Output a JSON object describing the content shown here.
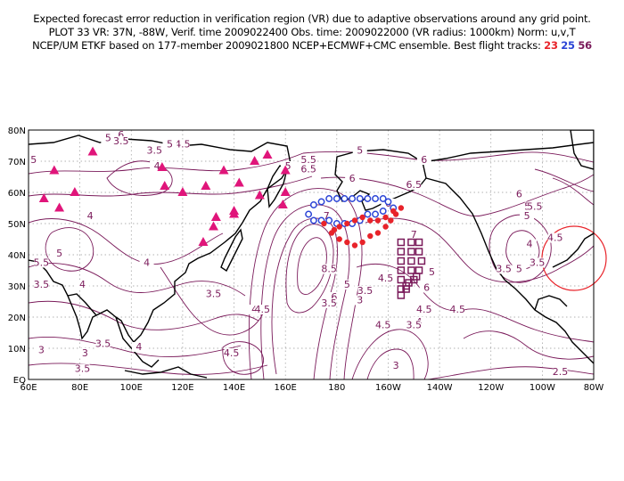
{
  "header": {
    "line1": "Expected forecast error reduction in verification region (VR) due to adaptive observations around any grid point.",
    "line2": "PLOT 33 VR: 37N, -88W, Verif. time 2009022400 Obs. time: 2009022000 (VR radius: 1000km) Norm: u,v,T",
    "line3_prefix": "NCEP/UM ETKF based on 177-member 2009021800 NCEP+ECMWF+CMC ensemble. Best flight tracks:",
    "track_ids": [
      "23",
      "25",
      "56"
    ]
  },
  "colors": {
    "contour": "#7a1a5a",
    "track_23": "#e8232a",
    "track_25": "#2b44d6",
    "track_56": "#7a1a5a",
    "stations": "#e0157a",
    "verification_circle": "#e8232a"
  },
  "map": {
    "lon_ticks": [
      "60E",
      "80E",
      "100E",
      "120E",
      "140E",
      "160E",
      "180",
      "160W",
      "140W",
      "120W",
      "100W",
      "80W"
    ],
    "lat_ticks": [
      "EQ",
      "10N",
      "20N",
      "30N",
      "40N",
      "50N",
      "60N",
      "70N",
      "80N"
    ],
    "lon_range": [
      60,
      280
    ],
    "lat_range": [
      0,
      80
    ],
    "verification_region": {
      "lat": 37,
      "lon": -88
    },
    "contour_labels": [
      {
        "v": "5.5",
        "lon": 169,
        "lat": 70
      },
      {
        "v": "6.5",
        "lon": 169,
        "lat": 67
      },
      {
        "v": "6",
        "lon": 186,
        "lat": 64
      },
      {
        "v": "5",
        "lon": 189,
        "lat": 73
      },
      {
        "v": "6",
        "lon": 214,
        "lat": 70
      },
      {
        "v": "6.5",
        "lon": 210,
        "lat": 62
      },
      {
        "v": "6",
        "lon": 200,
        "lat": 56
      },
      {
        "v": "7",
        "lon": 210,
        "lat": 46
      },
      {
        "v": "5",
        "lon": 217,
        "lat": 34
      },
      {
        "v": "6",
        "lon": 215,
        "lat": 29
      },
      {
        "v": "4.5",
        "lon": 199,
        "lat": 32
      },
      {
        "v": "3.5",
        "lon": 191,
        "lat": 28
      },
      {
        "v": "5",
        "lon": 184,
        "lat": 30
      },
      {
        "v": "8.5",
        "lon": 177,
        "lat": 35
      },
      {
        "v": "7",
        "lon": 176,
        "lat": 52
      },
      {
        "v": "6",
        "lon": 179,
        "lat": 26
      },
      {
        "v": "3",
        "lon": 189,
        "lat": 25
      },
      {
        "v": "3.5",
        "lon": 177,
        "lat": 24
      },
      {
        "v": "4.5",
        "lon": 198,
        "lat": 17
      },
      {
        "v": "4",
        "lon": 212,
        "lat": 18
      },
      {
        "v": "4.5",
        "lon": 214,
        "lat": 22
      },
      {
        "v": "3.5",
        "lon": 210,
        "lat": 17
      },
      {
        "v": "3",
        "lon": 203,
        "lat": 4
      },
      {
        "v": "2.5",
        "lon": 267,
        "lat": 2
      },
      {
        "v": "6",
        "lon": 251,
        "lat": 59
      },
      {
        "v": "5.5",
        "lon": 256,
        "lat": 55
      },
      {
        "v": "5",
        "lon": 254,
        "lat": 52
      },
      {
        "v": "4.5",
        "lon": 265,
        "lat": 45
      },
      {
        "v": "4",
        "lon": 255,
        "lat": 43
      },
      {
        "v": "3.5",
        "lon": 258,
        "lat": 37
      },
      {
        "v": "3.5",
        "lon": 245,
        "lat": 35
      },
      {
        "v": "5",
        "lon": 251,
        "lat": 35
      },
      {
        "v": "4.5",
        "lon": 227,
        "lat": 22
      },
      {
        "v": "5.5",
        "lon": 257,
        "lat": 55
      },
      {
        "v": "5",
        "lon": 91,
        "lat": 77
      },
      {
        "v": "6",
        "lon": 96,
        "lat": 78
      },
      {
        "v": "3.5",
        "lon": 96,
        "lat": 76
      },
      {
        "v": "4.5",
        "lon": 120,
        "lat": 75
      },
      {
        "v": "5",
        "lon": 115,
        "lat": 75
      },
      {
        "v": "4",
        "lon": 110,
        "lat": 68
      },
      {
        "v": "5",
        "lon": 62,
        "lat": 70
      },
      {
        "v": "4",
        "lon": 84,
        "lat": 52
      },
      {
        "v": "5",
        "lon": 72,
        "lat": 40
      },
      {
        "v": "5.5",
        "lon": 65,
        "lat": 37
      },
      {
        "v": "4",
        "lon": 106,
        "lat": 37
      },
      {
        "v": "4",
        "lon": 148,
        "lat": 22
      },
      {
        "v": "3.5",
        "lon": 132,
        "lat": 27
      },
      {
        "v": "4.5",
        "lon": 151,
        "lat": 22
      },
      {
        "v": "4.5",
        "lon": 139,
        "lat": 8
      },
      {
        "v": "3.5",
        "lon": 89,
        "lat": 11
      },
      {
        "v": "3",
        "lon": 65,
        "lat": 9
      },
      {
        "v": "4",
        "lon": 81,
        "lat": 30
      },
      {
        "v": "3",
        "lon": 82,
        "lat": 8
      },
      {
        "v": "3.5",
        "lon": 81,
        "lat": 3
      },
      {
        "v": "4",
        "lon": 103,
        "lat": 10
      },
      {
        "v": "3.5",
        "lon": 65,
        "lat": 30
      },
      {
        "v": "5",
        "lon": 161,
        "lat": 68
      },
      {
        "v": "3.5",
        "lon": 109,
        "lat": 73
      }
    ],
    "stations": [
      {
        "lon": 85,
        "lat": 73
      },
      {
        "lon": 70,
        "lat": 67
      },
      {
        "lon": 66,
        "lat": 58
      },
      {
        "lon": 78,
        "lat": 60
      },
      {
        "lon": 72,
        "lat": 55
      },
      {
        "lon": 112,
        "lat": 68
      },
      {
        "lon": 113,
        "lat": 62
      },
      {
        "lon": 120,
        "lat": 60
      },
      {
        "lon": 129,
        "lat": 62
      },
      {
        "lon": 136,
        "lat": 67
      },
      {
        "lon": 142,
        "lat": 63
      },
      {
        "lon": 148,
        "lat": 70
      },
      {
        "lon": 150,
        "lat": 59
      },
      {
        "lon": 160,
        "lat": 67
      },
      {
        "lon": 160,
        "lat": 60
      },
      {
        "lon": 159,
        "lat": 56
      },
      {
        "lon": 133,
        "lat": 52
      },
      {
        "lon": 132,
        "lat": 49
      },
      {
        "lon": 128,
        "lat": 44
      },
      {
        "lon": 140,
        "lat": 53
      },
      {
        "lon": 140,
        "lat": 54
      },
      {
        "lon": 153,
        "lat": 72
      }
    ],
    "track_23": [
      {
        "lon": 175,
        "lat": 50
      },
      {
        "lon": 178,
        "lat": 47
      },
      {
        "lon": 181,
        "lat": 45
      },
      {
        "lon": 184,
        "lat": 44
      },
      {
        "lon": 187,
        "lat": 43
      },
      {
        "lon": 190,
        "lat": 44
      },
      {
        "lon": 193,
        "lat": 46
      },
      {
        "lon": 196,
        "lat": 47
      },
      {
        "lon": 199,
        "lat": 49
      },
      {
        "lon": 201,
        "lat": 51
      },
      {
        "lon": 203,
        "lat": 53
      },
      {
        "lon": 205,
        "lat": 55
      },
      {
        "lon": 202,
        "lat": 54
      },
      {
        "lon": 199,
        "lat": 52
      },
      {
        "lon": 196,
        "lat": 51
      },
      {
        "lon": 193,
        "lat": 51
      },
      {
        "lon": 190,
        "lat": 52
      },
      {
        "lon": 187,
        "lat": 51
      },
      {
        "lon": 184,
        "lat": 50
      },
      {
        "lon": 181,
        "lat": 49
      },
      {
        "lon": 179,
        "lat": 48
      }
    ],
    "track_25": [
      {
        "lon": 169,
        "lat": 53
      },
      {
        "lon": 171,
        "lat": 56
      },
      {
        "lon": 174,
        "lat": 57
      },
      {
        "lon": 177,
        "lat": 58
      },
      {
        "lon": 180,
        "lat": 58
      },
      {
        "lon": 183,
        "lat": 58
      },
      {
        "lon": 186,
        "lat": 58
      },
      {
        "lon": 189,
        "lat": 58
      },
      {
        "lon": 192,
        "lat": 58
      },
      {
        "lon": 195,
        "lat": 58
      },
      {
        "lon": 198,
        "lat": 58
      },
      {
        "lon": 200,
        "lat": 57
      },
      {
        "lon": 202,
        "lat": 55
      },
      {
        "lon": 198,
        "lat": 54
      },
      {
        "lon": 195,
        "lat": 53
      },
      {
        "lon": 192,
        "lat": 53
      },
      {
        "lon": 189,
        "lat": 51
      },
      {
        "lon": 186,
        "lat": 50
      },
      {
        "lon": 183,
        "lat": 50
      },
      {
        "lon": 180,
        "lat": 50
      },
      {
        "lon": 177,
        "lat": 51
      },
      {
        "lon": 174,
        "lat": 51
      },
      {
        "lon": 171,
        "lat": 51
      }
    ],
    "track_56": [
      {
        "lon": 205,
        "lat": 44
      },
      {
        "lon": 205,
        "lat": 41
      },
      {
        "lon": 205,
        "lat": 38
      },
      {
        "lon": 205,
        "lat": 35
      },
      {
        "lon": 205,
        "lat": 32
      },
      {
        "lon": 205,
        "lat": 29
      },
      {
        "lon": 205,
        "lat": 27
      },
      {
        "lon": 209,
        "lat": 44
      },
      {
        "lon": 209,
        "lat": 41
      },
      {
        "lon": 209,
        "lat": 38
      },
      {
        "lon": 209,
        "lat": 35
      },
      {
        "lon": 210,
        "lat": 32
      },
      {
        "lon": 207,
        "lat": 30
      },
      {
        "lon": 212,
        "lat": 44
      },
      {
        "lon": 212,
        "lat": 41
      },
      {
        "lon": 213,
        "lat": 38
      },
      {
        "lon": 212,
        "lat": 35
      },
      {
        "lon": 211,
        "lat": 33
      },
      {
        "lon": 208,
        "lat": 31
      },
      {
        "lon": 207,
        "lat": 29
      }
    ]
  }
}
